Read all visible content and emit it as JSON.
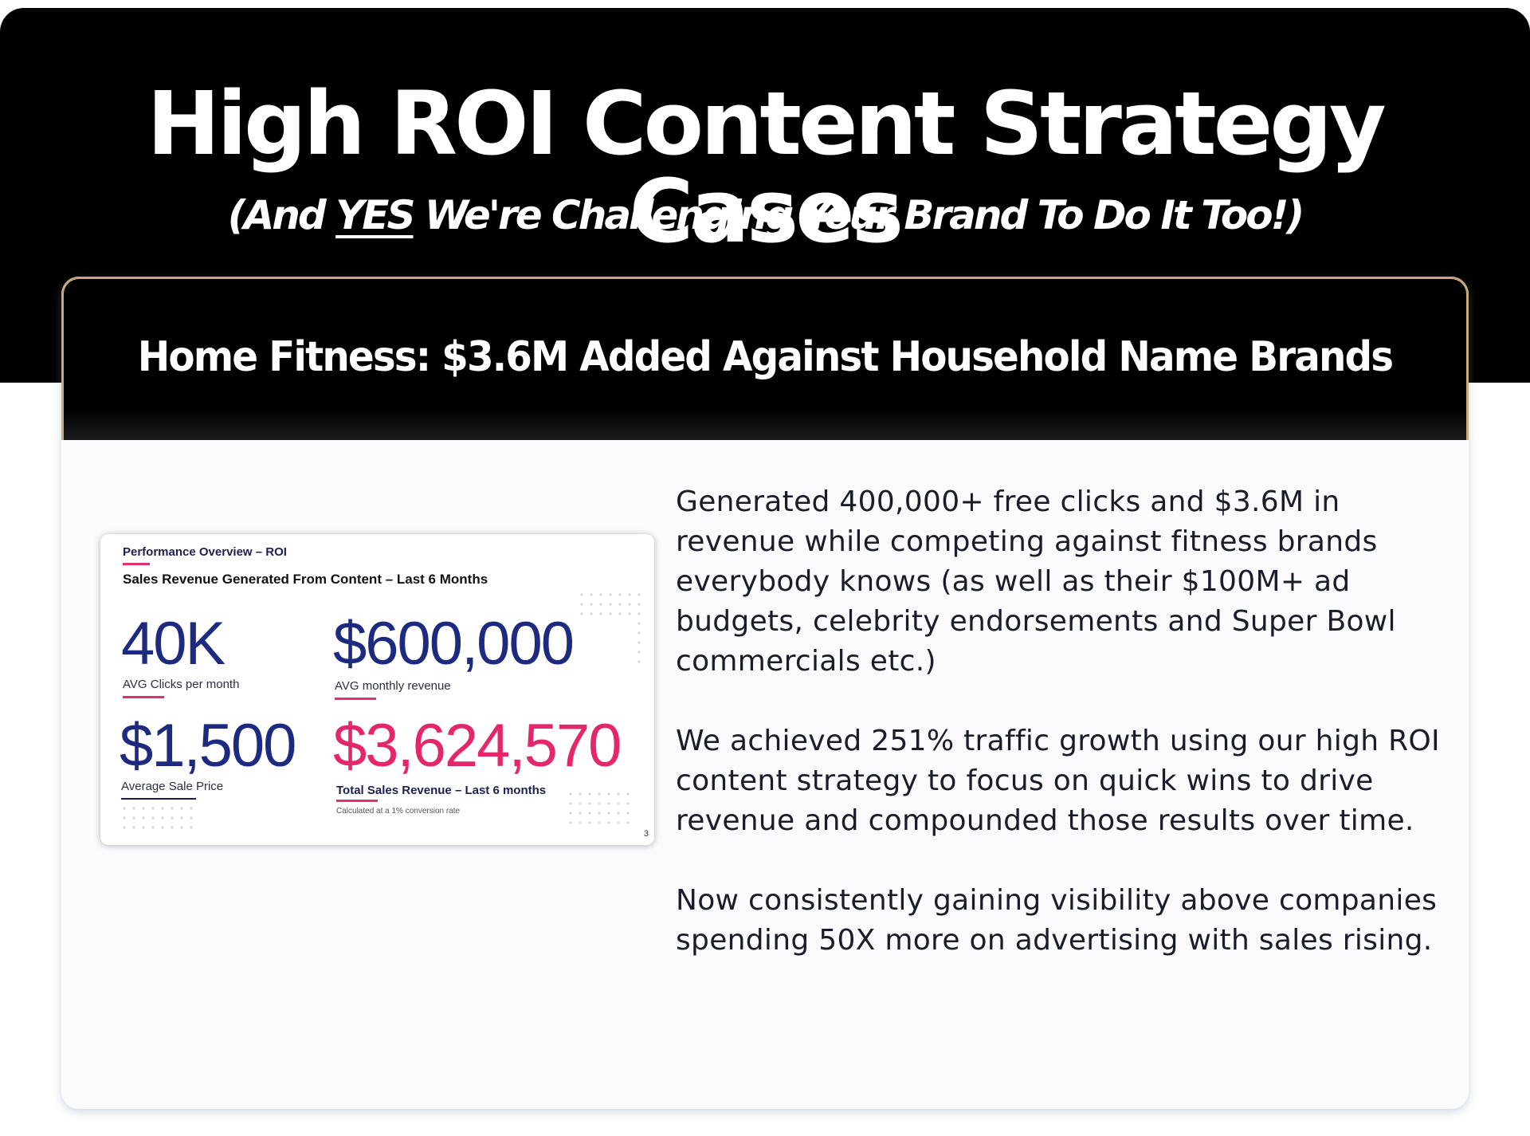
{
  "hero": {
    "title": "High ROI Content Strategy Cases",
    "subtitle_pre": "(And ",
    "subtitle_em": "YES",
    "subtitle_post": " We're Challenging Your Brand To Do It Too!)"
  },
  "card": {
    "title": "Home Fitness: $3.6M Added Against Household Name Brands"
  },
  "slide": {
    "eyebrow": "Performance Overview – ROI",
    "heading": "Sales Revenue Generated From Content – Last 6 Months",
    "metrics": [
      {
        "value": "40K",
        "label": "AVG Clicks per month"
      },
      {
        "value": "$600,000",
        "label": "AVG monthly revenue"
      },
      {
        "value": "$1,500",
        "label": "Average Sale Price"
      },
      {
        "value": "$3,624,570",
        "label": "Total Sales Revenue – Last 6 months"
      }
    ],
    "note": "Calculated at a 1% conversion rate",
    "page": "3",
    "colors": {
      "navy": "#1c2a80",
      "pink": "#e4266a"
    }
  },
  "body": {
    "paragraphs": [
      "Generated 400,000+ free clicks and $3.6M in revenue while competing against fitness brands everybody knows (as well as their $100M+ ad budgets, celebrity endorsements and Super Bowl commercials etc.)",
      "We achieved 251% traffic growth using our high ROI content strategy to focus on quick wins to drive revenue and compounded those results over time.",
      "Now consistently gaining visibility above companies spending 50X more on advertising with sales rising."
    ]
  }
}
